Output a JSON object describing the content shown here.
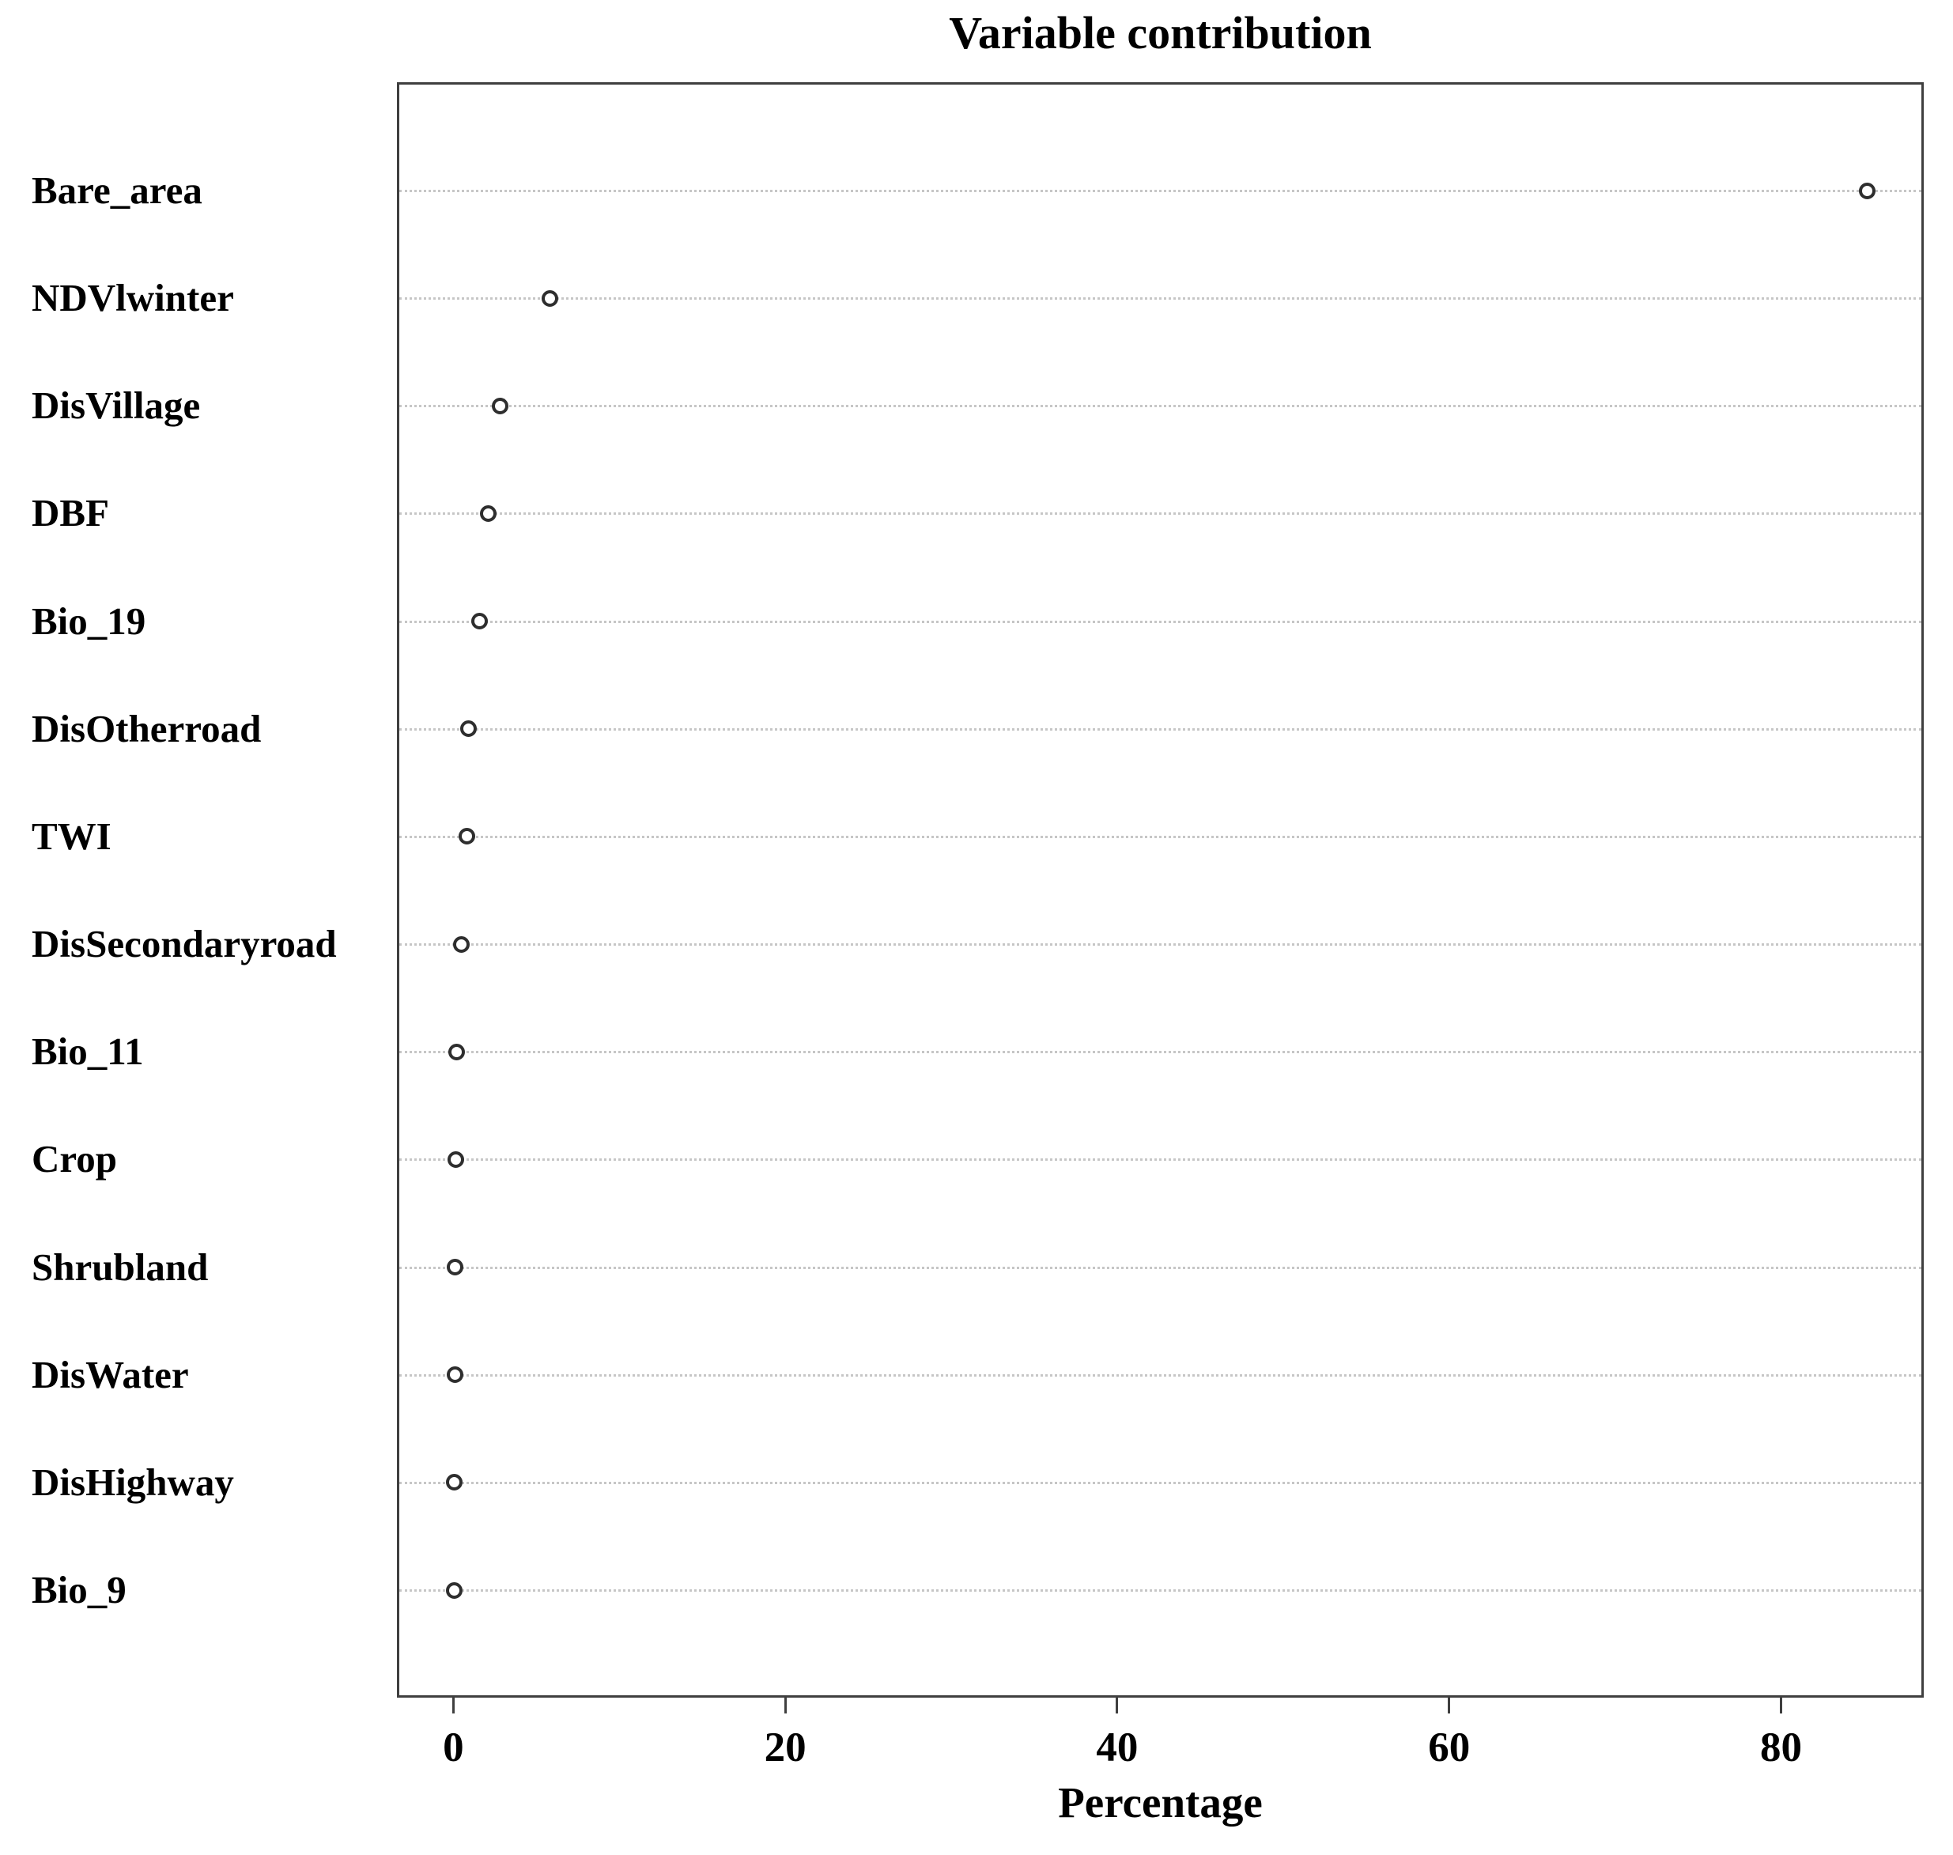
{
  "chart_data": {
    "type": "scatter",
    "variant": "dotchart",
    "orientation": "horizontal",
    "title": "Variable contribution",
    "xlabel": "Percentage",
    "ylabel": "",
    "categories": [
      "Bare_area",
      "NDVlwinter",
      "DisVillage",
      "DBF",
      "Bio_19",
      "DisOtherroad",
      "TWI",
      "DisSecondaryroad",
      "Bio_11",
      "Crop",
      "Shrubland",
      "DisWater",
      "DisHighway",
      "Bio_9"
    ],
    "values": [
      85.2,
      5.8,
      2.8,
      2.1,
      1.6,
      0.9,
      0.8,
      0.5,
      0.2,
      0.15,
      0.1,
      0.1,
      0.05,
      0.05
    ],
    "x_ticks": [
      0,
      20,
      40,
      60,
      80
    ],
    "xlim": [
      -3.4,
      88.6
    ],
    "grid": "horizontal-dotted",
    "legend": "none",
    "marker": "open-circle",
    "colors": {
      "text": "#000000",
      "plot_border": "#3f3f3f",
      "gridline": "#c6c6c6",
      "marker_ring": "#2e2e2e",
      "background": "#ffffff"
    }
  }
}
